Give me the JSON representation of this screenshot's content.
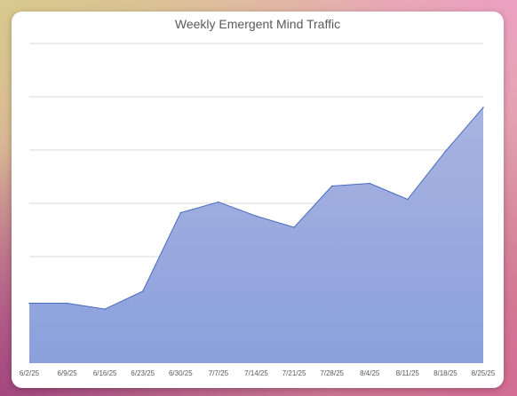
{
  "chart_data": {
    "type": "area",
    "title": "Weekly Emergent Mind Traffic",
    "xlabel": "",
    "ylabel": "",
    "categories": [
      "6/2/25",
      "6/9/25",
      "6/16/25",
      "6/23/25",
      "6/30/25",
      "7/7/25",
      "7/14/25",
      "7/21/25",
      "7/28/25",
      "8/4/25",
      "8/11/25",
      "8/18/25",
      "8/25/25"
    ],
    "series": [
      {
        "values": [
          22.5,
          22.5,
          20.3,
          27,
          56.5,
          60.5,
          55.2,
          51,
          66.5,
          67.5,
          61.5,
          79.5,
          96
        ]
      }
    ],
    "ylim": [
      0,
      120
    ],
    "y_ticks_labeled": false,
    "grid": true,
    "legend": "none",
    "colors": {
      "fill_top": "#a9b4e0",
      "fill_bottom": "#8aa0dc",
      "line": "#4a6bbf",
      "grid": "#d9d9d9",
      "axis_text": "#595959"
    }
  }
}
